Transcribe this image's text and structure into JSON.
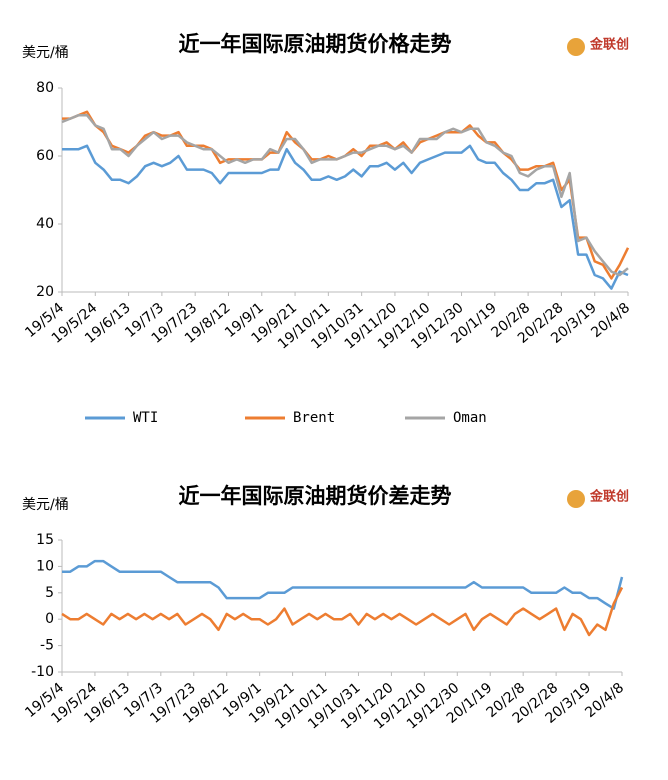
{
  "chart_data": [
    {
      "type": "line",
      "title": "近一年国际原油期货价格走势",
      "y_label": "美元/桶",
      "logo": "金联创",
      "categories": [
        "19/5/4",
        null,
        null,
        null,
        "19/5/24",
        null,
        null,
        null,
        "19/6/13",
        null,
        null,
        null,
        "19/7/3",
        null,
        null,
        null,
        "19/7/23",
        null,
        null,
        null,
        "19/8/12",
        null,
        null,
        null,
        "19/9/1",
        null,
        null,
        null,
        "19/9/21",
        null,
        null,
        null,
        "19/10/11",
        null,
        null,
        null,
        "19/10/31",
        null,
        null,
        null,
        "19/11/20",
        null,
        null,
        null,
        "19/12/10",
        null,
        null,
        null,
        "19/12/30",
        null,
        null,
        null,
        "20/1/19",
        null,
        null,
        null,
        "20/2/8",
        null,
        null,
        null,
        "20/2/28",
        null,
        null,
        null,
        "20/3/19",
        null,
        null,
        null,
        "20/4/8"
      ],
      "ylim": [
        20,
        80
      ],
      "yticks": [
        20,
        40,
        60,
        80
      ],
      "legend": "bottom",
      "series": [
        {
          "name": "WTI",
          "color": "#5b9bd5",
          "values": [
            62,
            62,
            62,
            63,
            58,
            56,
            53,
            53,
            52,
            54,
            57,
            58,
            57,
            58,
            60,
            56,
            56,
            56,
            55,
            52,
            55,
            55,
            55,
            55,
            55,
            56,
            56,
            62,
            58,
            56,
            53,
            53,
            54,
            53,
            54,
            56,
            54,
            57,
            57,
            58,
            56,
            58,
            55,
            58,
            59,
            60,
            61,
            61,
            61,
            63,
            59,
            58,
            58,
            55,
            53,
            50,
            50,
            52,
            52,
            53,
            45,
            47,
            31,
            31,
            25,
            24,
            21,
            26,
            25
          ]
        },
        {
          "name": "Brent",
          "color": "#ed7d31",
          "values": [
            71,
            71,
            72,
            73,
            69,
            67,
            63,
            62,
            61,
            63,
            66,
            67,
            66,
            66,
            67,
            63,
            63,
            63,
            62,
            58,
            59,
            59,
            59,
            59,
            59,
            61,
            61,
            67,
            64,
            62,
            59,
            59,
            60,
            59,
            60,
            62,
            60,
            63,
            63,
            64,
            62,
            64,
            61,
            64,
            65,
            66,
            67,
            67,
            67,
            69,
            66,
            64,
            64,
            61,
            59,
            56,
            56,
            57,
            57,
            58,
            50,
            53,
            36,
            36,
            29,
            28,
            24,
            28,
            33
          ]
        },
        {
          "name": "Oman",
          "color": "#a5a5a5",
          "values": [
            70,
            71,
            72,
            72,
            69,
            68,
            62,
            62,
            60,
            63,
            65,
            67,
            65,
            66,
            66,
            64,
            63,
            62,
            62,
            60,
            58,
            59,
            58,
            59,
            59,
            62,
            61,
            65,
            65,
            62,
            58,
            59,
            59,
            59,
            60,
            61,
            61,
            62,
            63,
            63,
            62,
            63,
            61,
            65,
            65,
            65,
            67,
            68,
            67,
            68,
            68,
            64,
            63,
            61,
            60,
            55,
            54,
            56,
            57,
            57,
            48,
            55,
            35,
            36,
            32,
            29,
            26,
            25,
            27
          ]
        }
      ]
    },
    {
      "type": "line",
      "title": "近一年国际原油期货价差走势",
      "y_label": "美元/桶",
      "logo": "金联创",
      "categories": [
        "19/5/4",
        null,
        null,
        null,
        "19/5/24",
        null,
        null,
        null,
        "19/6/13",
        null,
        null,
        null,
        "19/7/3",
        null,
        null,
        null,
        "19/7/23",
        null,
        null,
        null,
        "19/8/12",
        null,
        null,
        null,
        "19/9/1",
        null,
        null,
        null,
        "19/9/21",
        null,
        null,
        null,
        "19/10/11",
        null,
        null,
        null,
        "19/10/31",
        null,
        null,
        null,
        "19/11/20",
        null,
        null,
        null,
        "19/12/10",
        null,
        null,
        null,
        "19/12/30",
        null,
        null,
        null,
        "20/1/19",
        null,
        null,
        null,
        "20/2/8",
        null,
        null,
        null,
        "20/2/28",
        null,
        null,
        null,
        "20/3/19",
        null,
        null,
        null,
        "20/4/8"
      ],
      "ylim": [
        -10,
        15
      ],
      "yticks": [
        -10,
        -5,
        0,
        5,
        10,
        15
      ],
      "series": [
        {
          "color": "#5b9bd5",
          "values": [
            9,
            9,
            10,
            10,
            11,
            11,
            10,
            9,
            9,
            9,
            9,
            9,
            9,
            8,
            7,
            7,
            7,
            7,
            7,
            6,
            4,
            4,
            4,
            4,
            4,
            5,
            5,
            5,
            6,
            6,
            6,
            6,
            6,
            6,
            6,
            6,
            6,
            6,
            6,
            6,
            6,
            6,
            6,
            6,
            6,
            6,
            6,
            6,
            6,
            6,
            7,
            6,
            6,
            6,
            6,
            6,
            6,
            5,
            5,
            5,
            5,
            6,
            5,
            5,
            4,
            4,
            3,
            2,
            8
          ]
        },
        {
          "color": "#ed7d31",
          "values": [
            1,
            0,
            0,
            1,
            0,
            -1,
            1,
            0,
            1,
            0,
            1,
            0,
            1,
            0,
            1,
            -1,
            0,
            1,
            0,
            -2,
            1,
            0,
            1,
            0,
            0,
            -1,
            0,
            2,
            -1,
            0,
            1,
            0,
            1,
            0,
            0,
            1,
            -1,
            1,
            0,
            1,
            0,
            1,
            0,
            -1,
            0,
            1,
            0,
            -1,
            0,
            1,
            -2,
            0,
            1,
            0,
            -1,
            1,
            2,
            1,
            0,
            1,
            2,
            -2,
            1,
            0,
            -3,
            -1,
            -2,
            3,
            6
          ]
        }
      ]
    }
  ]
}
